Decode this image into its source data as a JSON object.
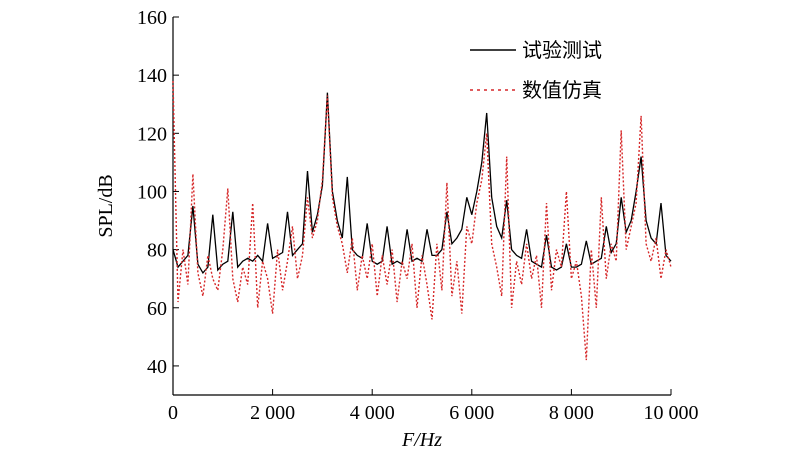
{
  "chart_data": {
    "type": "line",
    "xlabel": "F/Hz",
    "ylabel": "SPL/dB",
    "x": [
      0,
      100,
      200,
      300,
      400,
      500,
      600,
      700,
      800,
      900,
      1000,
      1100,
      1200,
      1300,
      1400,
      1500,
      1600,
      1700,
      1800,
      1900,
      2000,
      2100,
      2200,
      2300,
      2400,
      2500,
      2600,
      2700,
      2800,
      2900,
      3000,
      3100,
      3200,
      3300,
      3400,
      3500,
      3600,
      3700,
      3800,
      3900,
      4000,
      4100,
      4200,
      4300,
      4400,
      4500,
      4600,
      4700,
      4800,
      4900,
      5000,
      5100,
      5200,
      5300,
      5400,
      5500,
      5600,
      5700,
      5800,
      5900,
      6000,
      6100,
      6200,
      6300,
      6400,
      6500,
      6600,
      6700,
      6800,
      6900,
      7000,
      7100,
      7200,
      7300,
      7400,
      7500,
      7600,
      7700,
      7800,
      7900,
      8000,
      8100,
      8200,
      8300,
      8400,
      8500,
      8600,
      8700,
      8800,
      8900,
      9000,
      9100,
      9200,
      9300,
      9400,
      9500,
      9600,
      9700,
      9800,
      9900,
      10000
    ],
    "series": [
      {
        "name": "试验测试",
        "color": "#000000",
        "dash": "solid",
        "values": [
          80,
          74,
          76,
          78,
          95,
          75,
          72,
          74,
          92,
          73,
          75,
          76,
          93,
          74,
          76,
          77,
          76,
          78,
          76,
          89,
          77,
          78,
          79,
          93,
          78,
          80,
          82,
          107,
          86,
          92,
          102,
          134,
          100,
          90,
          84,
          105,
          80,
          78,
          77,
          89,
          76,
          75,
          76,
          88,
          75,
          76,
          75,
          87,
          76,
          77,
          76,
          87,
          78,
          78,
          80,
          93,
          82,
          84,
          87,
          98,
          92,
          100,
          110,
          127,
          98,
          88,
          84,
          97,
          80,
          78,
          77,
          87,
          76,
          75,
          74,
          85,
          74,
          73,
          74,
          82,
          74,
          74,
          75,
          83,
          75,
          76,
          77,
          88,
          79,
          82,
          98,
          86,
          90,
          100,
          112,
          90,
          84,
          82,
          96,
          78,
          76
        ]
      },
      {
        "name": "数值仿真",
        "color": "#d62728",
        "dash": "dotted",
        "values": [
          138,
          62,
          80,
          68,
          106,
          72,
          64,
          78,
          70,
          66,
          80,
          101,
          70,
          62,
          74,
          68,
          96,
          60,
          76,
          70,
          58,
          80,
          66,
          76,
          88,
          70,
          78,
          98,
          84,
          90,
          104,
          133,
          98,
          88,
          82,
          72,
          84,
          66,
          78,
          70,
          82,
          64,
          78,
          68,
          80,
          62,
          76,
          70,
          82,
          60,
          78,
          68,
          56,
          82,
          66,
          103,
          64,
          76,
          58,
          88,
          82,
          96,
          104,
          120,
          82,
          74,
          64,
          112,
          60,
          76,
          68,
          82,
          70,
          78,
          60,
          96,
          66,
          80,
          74,
          100,
          70,
          76,
          64,
          42,
          80,
          60,
          98,
          70,
          82,
          76,
          121,
          80,
          88,
          96,
          126,
          82,
          76,
          84,
          70,
          80,
          74
        ]
      }
    ],
    "xlim": [
      0,
      10000
    ],
    "xticks": [
      0,
      {
        "value": 2000,
        "label": "2 000"
      },
      {
        "value": 4000,
        "label": "4 000"
      },
      {
        "value": 6000,
        "label": "6 000"
      },
      {
        "value": 8000,
        "label": "8 000"
      },
      {
        "value": 10000,
        "label": "10 000"
      }
    ],
    "ylim": [
      30,
      160
    ],
    "yticks": [
      40,
      60,
      80,
      100,
      120,
      140,
      160
    ],
    "legend": "upper right"
  }
}
